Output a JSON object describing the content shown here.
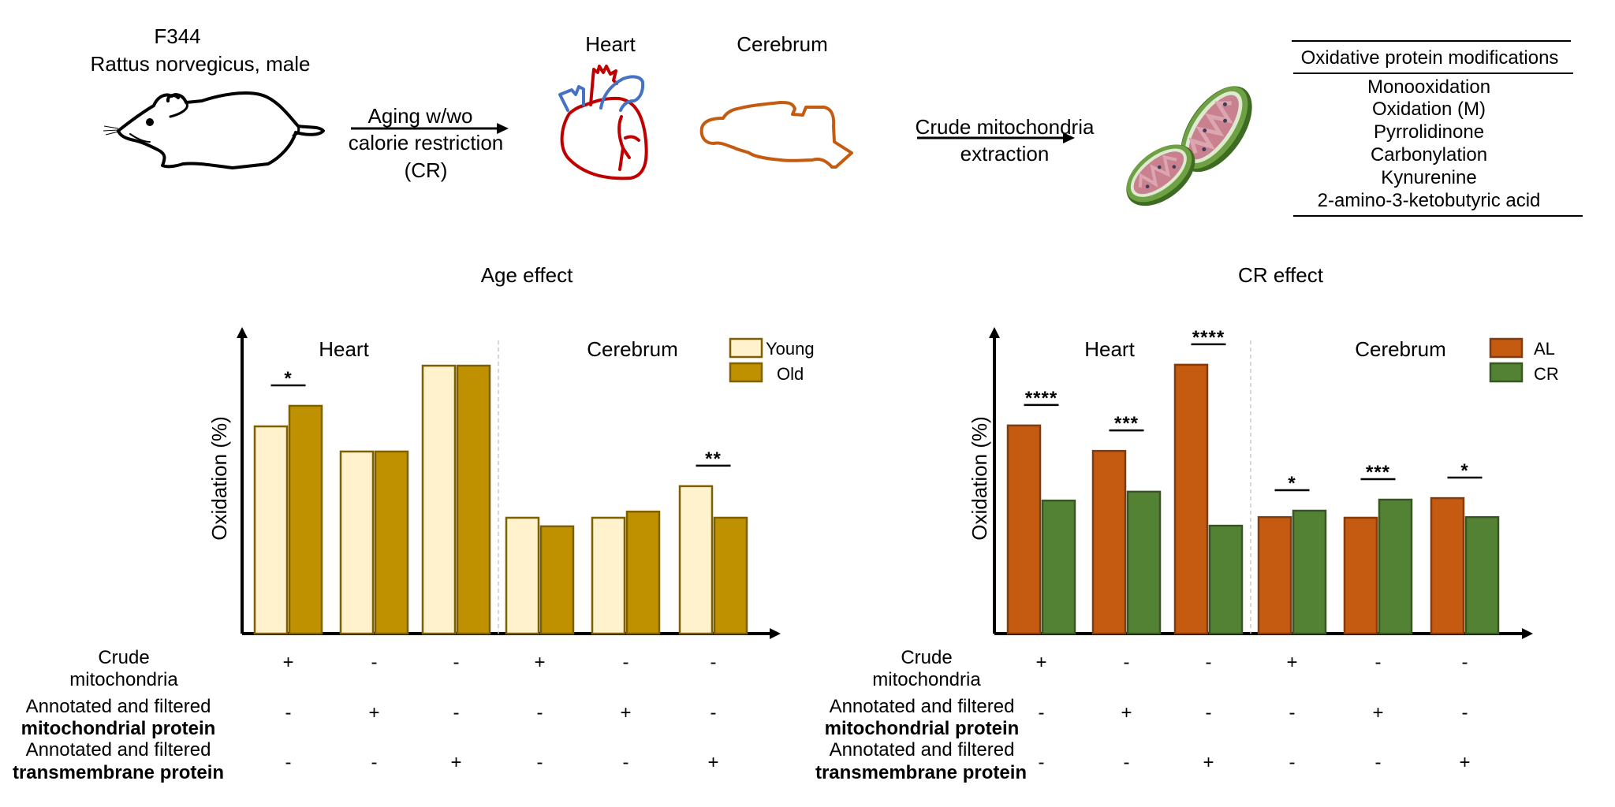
{
  "workflow": {
    "strain": "F344",
    "species": "Rattus norvegicus, male",
    "step1_line1": "Aging w/wo",
    "step1_line2": "calorie restriction",
    "step1_line3": "(CR)",
    "organ_heart": "Heart",
    "organ_cerebrum": "Cerebrum",
    "step2_line1": "Crude mitochondria",
    "step2_line2": "extraction",
    "icons": [
      "rat-icon",
      "heart-icon",
      "brain-icon",
      "mitochondria-icon"
    ],
    "colors": {
      "heart_red": "#C00000",
      "heart_blue": "#4472C4",
      "brain_orange": "#C55A11",
      "mito_green": "#548235",
      "mito_pink": "#C9808F"
    }
  },
  "modifications_table": {
    "header": "Oxidative protein modifications",
    "rows": [
      "Monooxidation",
      "Oxidation (M)",
      "Pyrrolidinone",
      "Carbonylation",
      "Kynurenine",
      "2-amino-3-ketobutyric acid"
    ]
  },
  "row_labels": {
    "crude_line1": "Crude",
    "crude_line2": "mitochondria",
    "mito_line1": "Annotated and filtered",
    "mito_line2": "mitochondrial protein",
    "tm_line1": "Annotated and filtered",
    "tm_line2": "transmembrane protein"
  },
  "chart_data": [
    {
      "type": "bar",
      "title": "Age effect",
      "xlabel": "",
      "ylabel": "Oxidation (%)",
      "ylim": [
        0,
        100
      ],
      "y_units": "relative (no tick labels shown)",
      "grid": false,
      "panels": [
        "Heart",
        "Cerebrum"
      ],
      "categories": [
        "Heart: Crude mitochondria",
        "Heart: Mitochondrial protein",
        "Heart: Transmembrane protein",
        "Cerebrum: Crude mitochondria",
        "Cerebrum: Mitochondrial protein",
        "Cerebrum: Transmembrane protein"
      ],
      "series": [
        {
          "name": "Young",
          "fill": "#FFF2CC",
          "stroke": "#7F6000",
          "values": [
            67.6,
            59.4,
            87.4,
            37.8,
            37.8,
            48.1
          ]
        },
        {
          "name": "Old",
          "fill": "#BF9000",
          "stroke": "#7F6000",
          "values": [
            74.3,
            59.4,
            87.4,
            35.0,
            39.8,
            37.8
          ]
        }
      ],
      "significance": [
        "*",
        "",
        "",
        "",
        "",
        "**"
      ],
      "condition_rows": {
        "crude": [
          "+",
          "-",
          "-",
          "+",
          "-",
          "-"
        ],
        "mito": [
          "-",
          "+",
          "-",
          "-",
          "+",
          "-"
        ],
        "tm": [
          "-",
          "-",
          "+",
          "-",
          "-",
          "+"
        ]
      },
      "legend": {
        "position": "top-right",
        "entries": [
          "Young",
          "Old"
        ]
      }
    },
    {
      "type": "bar",
      "title": "CR effect",
      "xlabel": "",
      "ylabel": "Oxidation (%)",
      "ylim": [
        0,
        100
      ],
      "y_units": "relative (no tick labels shown)",
      "grid": false,
      "panels": [
        "Heart",
        "Cerebrum"
      ],
      "categories": [
        "Heart: Crude mitochondria",
        "Heart: Mitochondrial protein",
        "Heart: Transmembrane protein",
        "Cerebrum: Crude mitochondria",
        "Cerebrum: Mitochondrial protein",
        "Cerebrum: Transmembrane protein"
      ],
      "series": [
        {
          "name": "AL",
          "fill": "#C55A11",
          "stroke": "#843C0C",
          "values": [
            67.9,
            59.6,
            87.7,
            38.0,
            37.8,
            44.2
          ]
        },
        {
          "name": "CR",
          "fill": "#548235",
          "stroke": "#385723",
          "values": [
            43.4,
            46.3,
            35.2,
            40.1,
            43.7,
            38.0
          ]
        }
      ],
      "significance": [
        "****",
        "***",
        "****",
        "*",
        "***",
        "*"
      ],
      "condition_rows": {
        "crude": [
          "+",
          "-",
          "-",
          "+",
          "-",
          "-"
        ],
        "mito": [
          "-",
          "+",
          "-",
          "-",
          "+",
          "-"
        ],
        "tm": [
          "-",
          "-",
          "+",
          "-",
          "-",
          "+"
        ]
      },
      "legend": {
        "position": "top-right",
        "entries": [
          "AL",
          "CR"
        ]
      }
    }
  ]
}
